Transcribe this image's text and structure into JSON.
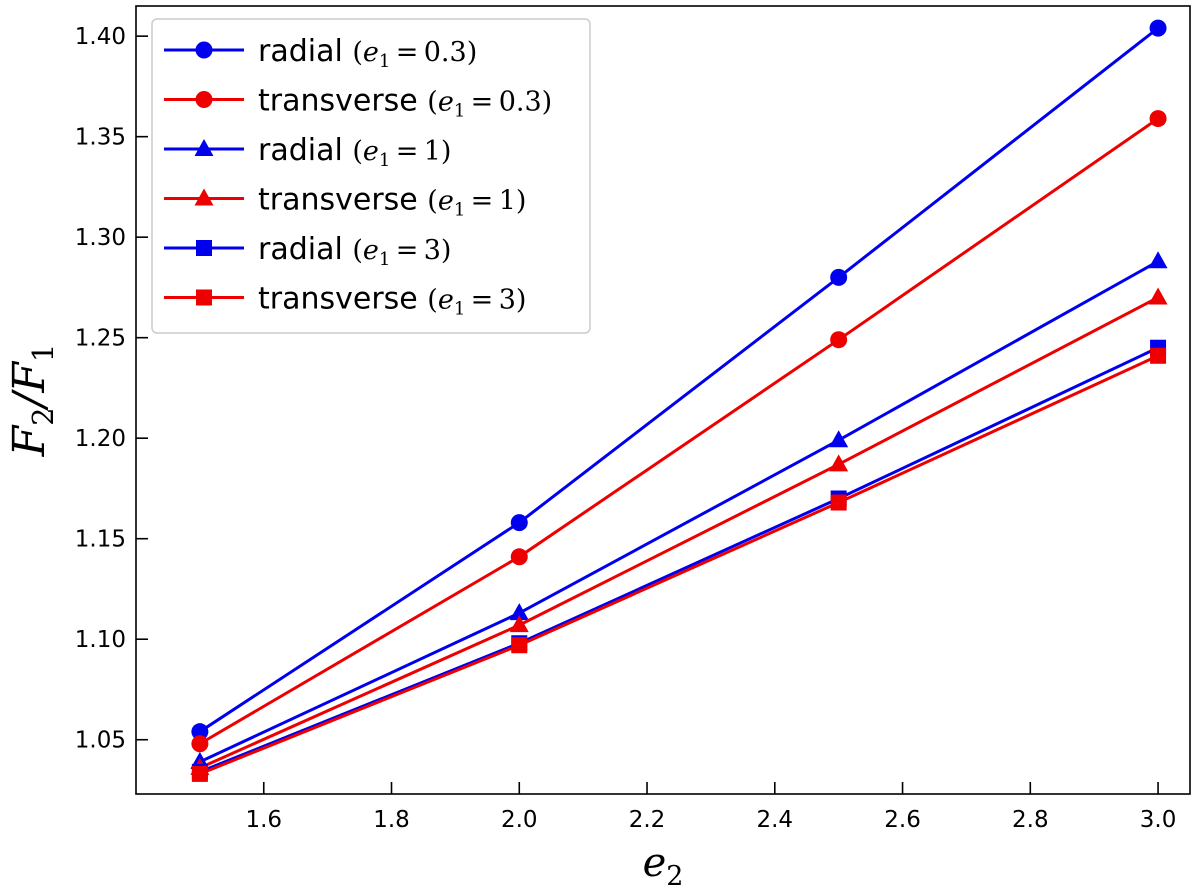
{
  "chart_data": {
    "type": "line",
    "title": "",
    "xlabel": "e2",
    "ylabel": "F2/F1",
    "xlim": [
      1.4,
      3.05
    ],
    "ylim": [
      1.023,
      1.415
    ],
    "xticks": [
      "1.6",
      "1.8",
      "2.0",
      "2.2",
      "2.4",
      "2.6",
      "2.8",
      "3.0"
    ],
    "yticks": [
      "1.05",
      "1.10",
      "1.15",
      "1.20",
      "1.25",
      "1.30",
      "1.35",
      "1.40"
    ],
    "grid": false,
    "legend_position": "top-left",
    "x": [
      1.5,
      2.0,
      2.5,
      3.0
    ],
    "series": [
      {
        "name": "radial",
        "e1": "0.3",
        "color": "#0000ee",
        "marker": "circle",
        "values": [
          1.054,
          1.158,
          1.28,
          1.404
        ]
      },
      {
        "name": "transverse",
        "e1": "0.3",
        "color": "#ee0000",
        "marker": "circle",
        "values": [
          1.048,
          1.141,
          1.249,
          1.359
        ]
      },
      {
        "name": "radial",
        "e1": "1",
        "color": "#0000ee",
        "marker": "triangle",
        "values": [
          1.039,
          1.113,
          1.199,
          1.288
        ]
      },
      {
        "name": "transverse",
        "e1": "1",
        "color": "#ee0000",
        "marker": "triangle",
        "values": [
          1.036,
          1.107,
          1.187,
          1.27
        ]
      },
      {
        "name": "radial",
        "e1": "3",
        "color": "#0000ee",
        "marker": "square",
        "values": [
          1.034,
          1.098,
          1.17,
          1.245
        ]
      },
      {
        "name": "transverse",
        "e1": "3",
        "color": "#ee0000",
        "marker": "square",
        "values": [
          1.033,
          1.097,
          1.168,
          1.241
        ]
      }
    ]
  }
}
